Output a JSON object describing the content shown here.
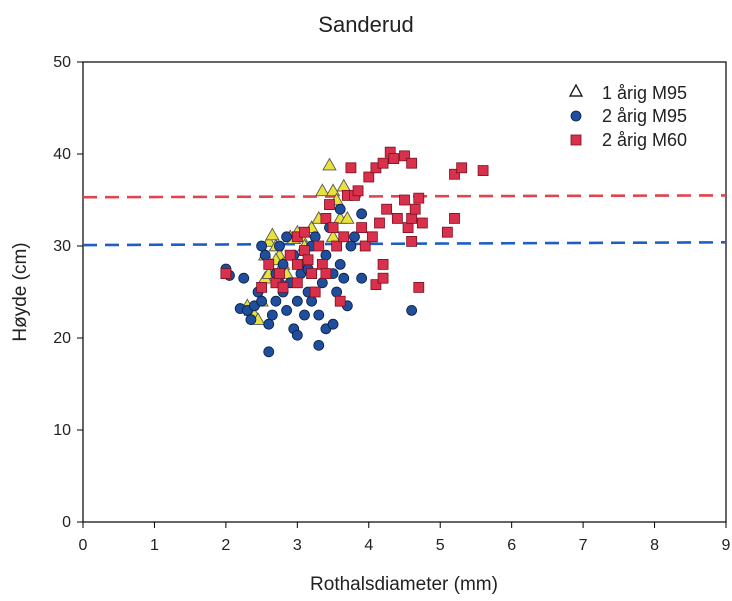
{
  "chart_data": {
    "type": "scatter",
    "title": "Sanderud",
    "xlabel": "Rothalsdiameter (mm)",
    "ylabel": "Høyde (cm)",
    "xlim": [
      0,
      9
    ],
    "ylim": [
      0,
      50
    ],
    "xticks": [
      "0",
      "1",
      "2",
      "3",
      "4",
      "5",
      "6",
      "7",
      "8",
      "9"
    ],
    "yticks": [
      "0",
      "10",
      "20",
      "30",
      "40",
      "50"
    ],
    "grid": false,
    "legend_position": "top-right",
    "colors": {
      "s1": "#e8e23a",
      "s2": "#1f4e9c",
      "s3": "#d9304c",
      "s2_line": "#1f5fc4",
      "s3_line": "#e0444c"
    },
    "series": [
      {
        "name": "1 årig M95",
        "marker": "triangle",
        "color": "#e8e23a",
        "points": [
          [
            2.3,
            23.5
          ],
          [
            2.35,
            23
          ],
          [
            2.4,
            22.5
          ],
          [
            2.45,
            22
          ],
          [
            2.5,
            24
          ],
          [
            2.55,
            26.5
          ],
          [
            2.55,
            29
          ],
          [
            2.6,
            30.5
          ],
          [
            2.65,
            31.2
          ],
          [
            2.7,
            30
          ],
          [
            2.75,
            29
          ],
          [
            2.8,
            28
          ],
          [
            2.85,
            27
          ],
          [
            2.9,
            31
          ],
          [
            3.0,
            31.5
          ],
          [
            3.05,
            31
          ],
          [
            3.1,
            30
          ],
          [
            3.2,
            32
          ],
          [
            3.3,
            33
          ],
          [
            3.35,
            36
          ],
          [
            3.45,
            38.8
          ],
          [
            3.5,
            36
          ],
          [
            3.55,
            35
          ],
          [
            3.6,
            33
          ],
          [
            3.65,
            36.5
          ],
          [
            3.7,
            33
          ],
          [
            3.5,
            31
          ],
          [
            3.25,
            30.5
          ],
          [
            2.95,
            30.8
          ],
          [
            2.7,
            28.5
          ],
          [
            2.6,
            27
          ]
        ]
      },
      {
        "name": "2 årig M95",
        "marker": "circle",
        "color": "#1f4e9c",
        "points": [
          [
            2.0,
            27.5
          ],
          [
            2.05,
            26.8
          ],
          [
            2.2,
            23.2
          ],
          [
            2.25,
            26.5
          ],
          [
            2.3,
            23
          ],
          [
            2.35,
            22
          ],
          [
            2.4,
            23.5
          ],
          [
            2.45,
            25
          ],
          [
            2.5,
            24
          ],
          [
            2.5,
            30
          ],
          [
            2.55,
            29
          ],
          [
            2.6,
            18.5
          ],
          [
            2.6,
            21.5
          ],
          [
            2.65,
            22.5
          ],
          [
            2.7,
            24
          ],
          [
            2.7,
            27
          ],
          [
            2.75,
            30
          ],
          [
            2.8,
            25
          ],
          [
            2.8,
            28
          ],
          [
            2.85,
            23
          ],
          [
            2.9,
            26
          ],
          [
            2.95,
            21
          ],
          [
            3.0,
            20.3
          ],
          [
            3.0,
            24
          ],
          [
            3.05,
            27
          ],
          [
            3.1,
            22.5
          ],
          [
            3.1,
            29.5
          ],
          [
            3.15,
            25
          ],
          [
            3.2,
            24
          ],
          [
            3.2,
            30
          ],
          [
            3.25,
            31
          ],
          [
            3.3,
            19.2
          ],
          [
            3.3,
            22.5
          ],
          [
            3.35,
            26
          ],
          [
            3.4,
            21
          ],
          [
            3.4,
            29
          ],
          [
            3.45,
            32
          ],
          [
            3.5,
            21.5
          ],
          [
            3.5,
            27
          ],
          [
            3.55,
            25
          ],
          [
            3.6,
            34
          ],
          [
            3.6,
            28
          ],
          [
            3.65,
            26.5
          ],
          [
            3.7,
            23.5
          ],
          [
            3.75,
            30
          ],
          [
            3.8,
            31
          ],
          [
            3.9,
            33.5
          ],
          [
            3.9,
            26.5
          ],
          [
            4.6,
            23
          ],
          [
            2.95,
            29
          ],
          [
            3.05,
            28
          ],
          [
            3.15,
            27.5
          ],
          [
            2.75,
            26
          ],
          [
            2.85,
            31
          ]
        ]
      },
      {
        "name": "2 årig M60",
        "marker": "square",
        "color": "#d9304c",
        "points": [
          [
            2.0,
            27
          ],
          [
            2.5,
            25.5
          ],
          [
            2.6,
            28
          ],
          [
            2.7,
            26
          ],
          [
            2.75,
            27
          ],
          [
            2.8,
            25.5
          ],
          [
            2.9,
            29
          ],
          [
            3.0,
            28
          ],
          [
            3.0,
            26
          ],
          [
            3.1,
            29.5
          ],
          [
            3.15,
            28.5
          ],
          [
            3.2,
            27
          ],
          [
            3.25,
            25
          ],
          [
            3.3,
            30
          ],
          [
            3.35,
            28
          ],
          [
            3.4,
            27
          ],
          [
            3.4,
            33
          ],
          [
            3.5,
            32
          ],
          [
            3.55,
            30
          ],
          [
            3.6,
            24
          ],
          [
            3.65,
            31
          ],
          [
            3.7,
            35.5
          ],
          [
            3.75,
            38.5
          ],
          [
            3.8,
            35.5
          ],
          [
            3.85,
            36
          ],
          [
            3.9,
            32
          ],
          [
            3.95,
            30
          ],
          [
            4.0,
            37.5
          ],
          [
            4.05,
            31
          ],
          [
            4.1,
            38.5
          ],
          [
            4.1,
            25.8
          ],
          [
            4.15,
            32.5
          ],
          [
            4.2,
            39
          ],
          [
            4.2,
            28
          ],
          [
            4.2,
            26.5
          ],
          [
            4.25,
            34
          ],
          [
            4.3,
            40.2
          ],
          [
            4.35,
            39.5
          ],
          [
            4.4,
            33
          ],
          [
            4.5,
            39.8
          ],
          [
            4.5,
            35
          ],
          [
            4.55,
            32
          ],
          [
            4.6,
            39
          ],
          [
            4.6,
            30.5
          ],
          [
            4.6,
            33
          ],
          [
            4.65,
            34
          ],
          [
            4.7,
            35.2
          ],
          [
            4.7,
            25.5
          ],
          [
            4.75,
            32.5
          ],
          [
            5.1,
            31.5
          ],
          [
            5.2,
            37.8
          ],
          [
            5.2,
            33
          ],
          [
            5.3,
            38.5
          ],
          [
            5.6,
            38.2
          ],
          [
            3.0,
            31
          ],
          [
            3.1,
            31.5
          ],
          [
            3.45,
            34.5
          ]
        ]
      }
    ],
    "reference_lines": [
      {
        "style": "dashed",
        "color": "#e0444c",
        "x": [
          0,
          9
        ],
        "y": [
          35.3,
          35.5
        ]
      },
      {
        "style": "dashed",
        "color": "#1f5fc4",
        "x": [
          0,
          9
        ],
        "y": [
          30.1,
          30.4
        ]
      }
    ]
  }
}
